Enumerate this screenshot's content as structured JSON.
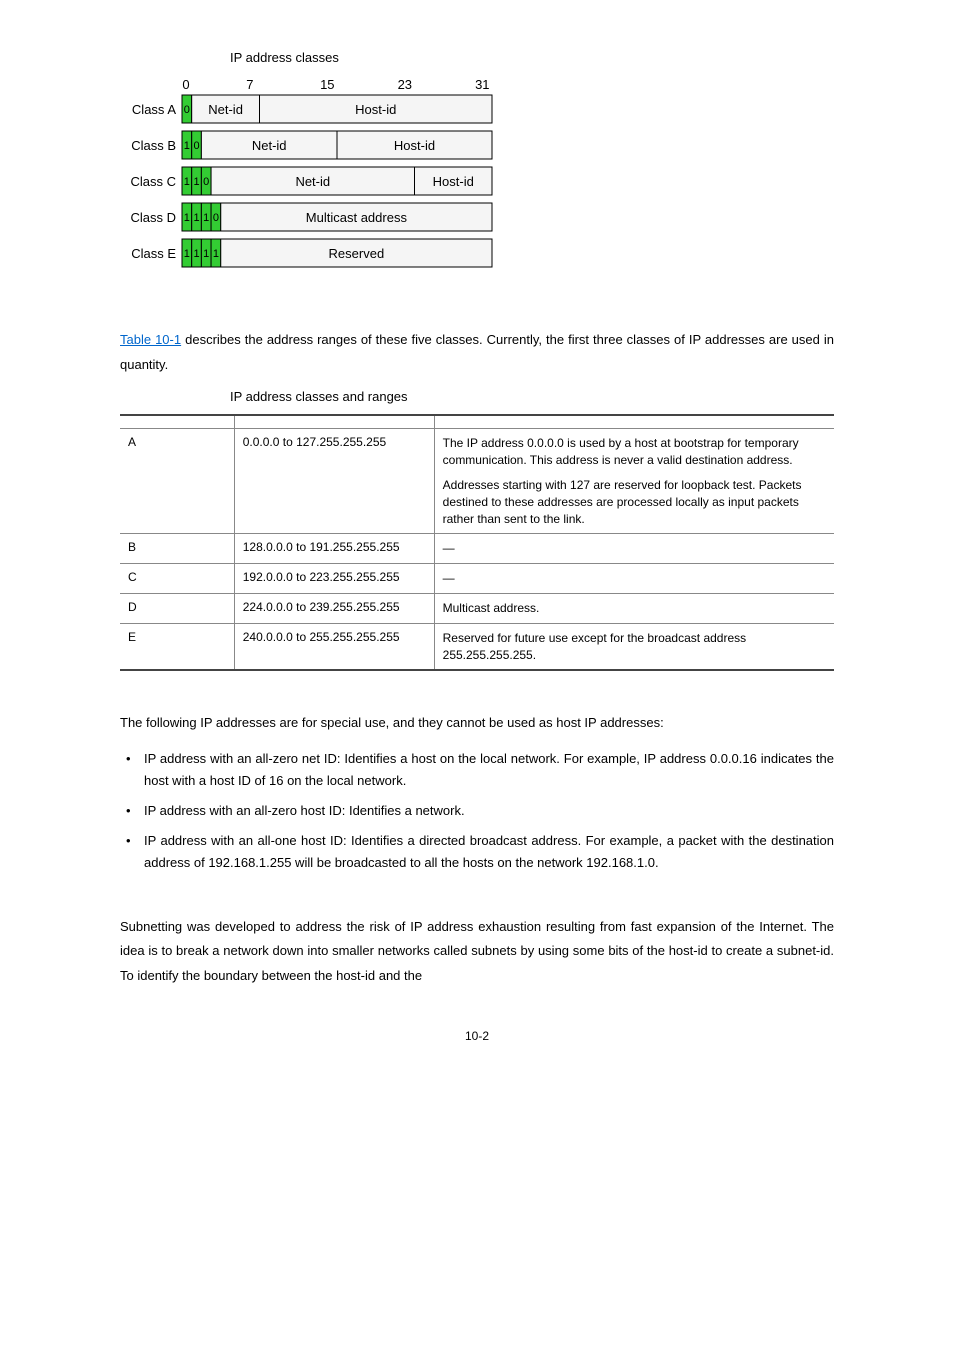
{
  "figure": {
    "title": "IP address classes",
    "tick_labels": [
      "0",
      "7",
      "15",
      "23",
      "31"
    ],
    "rows": [
      {
        "label": "Class A",
        "prefix_bits": [
          "0"
        ],
        "segments": [
          {
            "text": "Net-id",
            "span": 7
          },
          {
            "text": "Host-id",
            "span": 24
          }
        ]
      },
      {
        "label": "Class B",
        "prefix_bits": [
          "1",
          "0"
        ],
        "segments": [
          {
            "text": "Net-id",
            "span": 14
          },
          {
            "text": "Host-id",
            "span": 16
          }
        ]
      },
      {
        "label": "Class C",
        "prefix_bits": [
          "1",
          "1",
          "0"
        ],
        "segments": [
          {
            "text": "Net-id",
            "span": 21
          },
          {
            "text": "Host-id",
            "span": 8
          }
        ]
      },
      {
        "label": "Class D",
        "prefix_bits": [
          "1",
          "1",
          "1",
          "0"
        ],
        "segments": [
          {
            "text": "Multicast address",
            "span": 28
          }
        ]
      },
      {
        "label": "Class E",
        "prefix_bits": [
          "1",
          "1",
          "1",
          "1"
        ],
        "segments": [
          {
            "text": "Reserved",
            "span": 28
          }
        ]
      }
    ],
    "prefix_color": "#33cc33",
    "row_bg": "#f5f5f5",
    "border_color": "#000000"
  },
  "intro_text_pre": "Table 10-1",
  "intro_text_post": " describes the address ranges of these five classes. Currently, the first three classes of IP addresses are used in quantity.",
  "table": {
    "title": "IP address classes and ranges",
    "rows": [
      {
        "cls": "A",
        "range": "0.0.0.0 to 127.255.255.255",
        "desc": [
          "The IP address 0.0.0.0 is used by a host at bootstrap for temporary communication. This address is never a valid destination address.",
          "Addresses starting with 127 are reserved for loopback test. Packets destined to these addresses are processed locally as input packets rather than sent to the link."
        ]
      },
      {
        "cls": "B",
        "range": "128.0.0.0 to 191.255.255.255",
        "desc": [
          "—"
        ]
      },
      {
        "cls": "C",
        "range": "192.0.0.0 to 223.255.255.255",
        "desc": [
          "—"
        ]
      },
      {
        "cls": "D",
        "range": "224.0.0.0 to 239.255.255.255",
        "desc": [
          "Multicast address."
        ]
      },
      {
        "cls": "E",
        "range": "240.0.0.0 to 255.255.255.255",
        "desc": [
          "Reserved for future use except for the broadcast address 255.255.255.255."
        ]
      }
    ]
  },
  "special_heading": "The following IP addresses are for special use, and they cannot be used as host IP addresses:",
  "bullets": [
    "IP address with an all-zero net ID: Identifies a host on the local network. For example, IP address 0.0.0.16 indicates the host with a host ID of 16 on the local network.",
    "IP address with an all-zero host ID: Identifies a network.",
    "IP address with an all-one host ID: Identifies a directed broadcast address. For example, a packet with the destination address of 192.168.1.255 will be broadcasted to all the hosts on the network 192.168.1.0."
  ],
  "subnetting": "Subnetting was developed to address the risk of IP address exhaustion resulting from fast expansion of the Internet. The idea is to break a network down into smaller networks called subnets by using some bits of the host-id to create a subnet-id. To identify the boundary between the host-id and the",
  "page_number": "10-2"
}
